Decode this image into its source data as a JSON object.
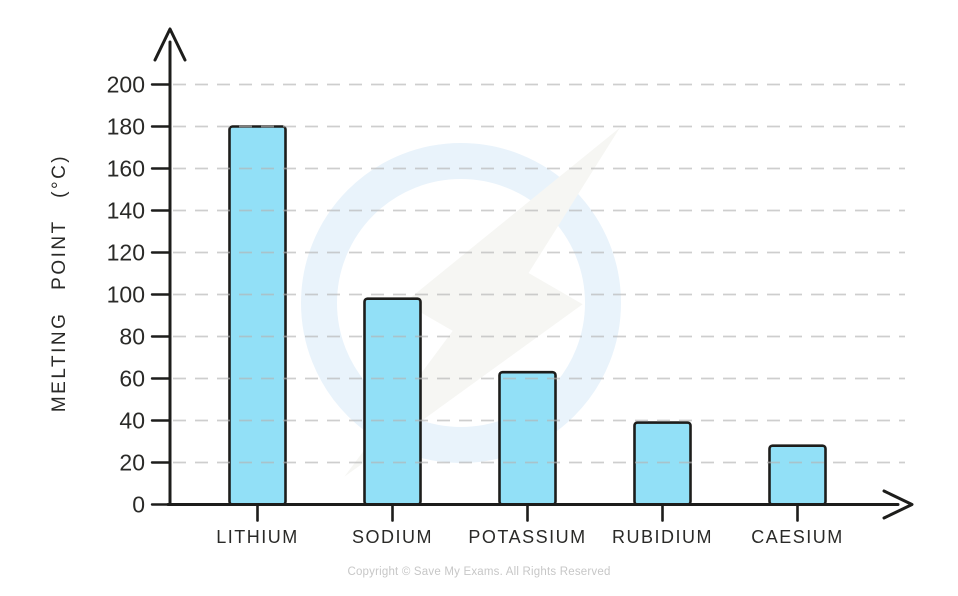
{
  "chart_data": {
    "type": "bar",
    "title": "",
    "categories": [
      "LITHIUM",
      "SODIUM",
      "POTASSIUM",
      "RUBIDIUM",
      "CAESIUM"
    ],
    "values": [
      180,
      98,
      63,
      39,
      28
    ],
    "ylabel": "MELTING POINT (°C)",
    "xlabel": "",
    "ylim": [
      0,
      200
    ],
    "ytick_step": 20,
    "yticks": [
      0,
      20,
      40,
      60,
      80,
      100,
      120,
      140,
      160,
      180,
      200
    ],
    "grid": "horizontal-dashed",
    "legend": "none",
    "bar_fill": "#92E0F7",
    "bar_stroke": "#1d1d1b",
    "grid_color": "#b5b5b5",
    "axis_color": "#1d1d1b",
    "label_color": "#2a2a28"
  },
  "watermark": {
    "description": "save-my-exams-lightning-logo",
    "ring_color": "#e9f3fb",
    "bolt_color": "#f6f6f3"
  },
  "footer": {
    "copyright": "Copyright © Save My Exams. All Rights Reserved"
  }
}
